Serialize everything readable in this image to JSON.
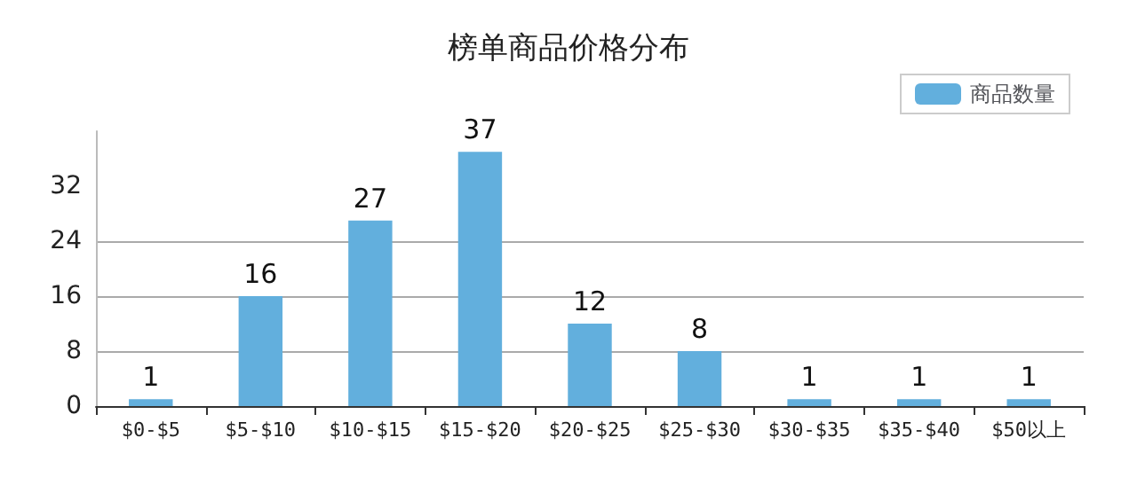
{
  "chart_data": {
    "type": "bar",
    "title": "榜单商品价格分布",
    "categories": [
      "$0-$5",
      "$5-$10",
      "$10-$15",
      "$15-$20",
      "$20-$25",
      "$25-$30",
      "$30-$35",
      "$35-$40",
      "$50以上"
    ],
    "series": [
      {
        "name": "商品数量",
        "color": "#62afdd",
        "values": [
          1,
          16,
          27,
          37,
          12,
          8,
          1,
          1,
          1
        ]
      }
    ],
    "ylim": [
      0,
      40
    ],
    "yticks": [
      0,
      8,
      16,
      24,
      32
    ],
    "grid": "y",
    "legend": "top right",
    "data_labels": true
  }
}
